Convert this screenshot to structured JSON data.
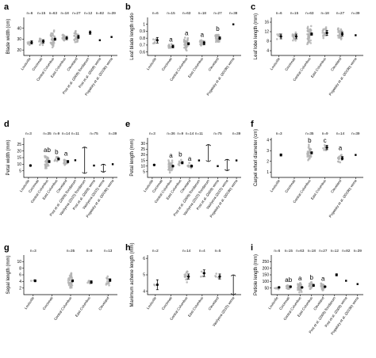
{
  "chart_data": [
    {
      "type": "scatter",
      "panel": "a",
      "ylabel": "Blade width (cm)",
      "ylim": [
        15,
        50
      ],
      "yticks": [
        20,
        30,
        40
      ],
      "categories": [
        "Louisville",
        "Cincinnati",
        "Central Columbus",
        "East Columbus",
        "Cleveland",
        "Post et al. (2009) floridanum",
        "Post et al. (2009) verna",
        "Pogatsky et al. (2019b) verna"
      ],
      "n": [
        "n=6",
        "n=15",
        "n=63",
        "n=18",
        "n=27",
        "n=12",
        "n=82",
        "n=39"
      ],
      "means": [
        27,
        28,
        30,
        31,
        32,
        36,
        29,
        32
      ],
      "err": [
        1.5,
        1.5,
        1,
        1.5,
        1.5,
        1.5,
        0,
        0
      ],
      "spread": [
        3,
        4,
        9,
        4,
        7,
        0,
        0,
        0
      ],
      "letters": []
    },
    {
      "type": "scatter",
      "panel": "b",
      "ylabel": "Leaf blade length ratio",
      "ylim": [
        0.55,
        1.1
      ],
      "yticks": [
        0.6,
        0.7,
        0.8,
        0.9,
        1.0
      ],
      "categories": [
        "Louisville",
        "Cincinnati",
        "Central Columbus",
        "East Columbus",
        "Cleveland",
        "Pogatsky et al. (2019b) verna"
      ],
      "n": [
        "n=6",
        "n=15",
        "n=63",
        "n=18",
        "n=27",
        "n=38"
      ],
      "means": [
        0.77,
        0.68,
        0.72,
        0.73,
        0.8,
        1.0
      ],
      "err": [
        0.04,
        0.02,
        0.015,
        0.025,
        0.02,
        0
      ],
      "spread": [
        0.06,
        0.04,
        0.1,
        0.06,
        0.08,
        0
      ],
      "letters": [
        "",
        "a",
        "a",
        "a",
        "b",
        ""
      ]
    },
    {
      "type": "scatter",
      "panel": "c",
      "ylabel": "Leaf lobe length (mm)",
      "ylim": [
        2,
        18
      ],
      "yticks": [
        4,
        8,
        12,
        16
      ],
      "categories": [
        "Louisville",
        "Cincinnati",
        "Central Columbus",
        "East Columbus",
        "Cleveland",
        "Pogatsky et al. (2019b) verna"
      ],
      "n": [
        "n=6",
        "n=15",
        "n=63",
        "n=18",
        "n=27",
        "n=39"
      ],
      "means": [
        10,
        10,
        11,
        11.5,
        11,
        10.5
      ],
      "err": [
        1,
        1,
        0.5,
        1,
        0.8,
        0
      ],
      "spread": [
        2,
        2.5,
        5,
        3,
        3,
        0
      ],
      "letters": []
    },
    {
      "type": "scatter",
      "panel": "d",
      "ylabel": "Petal width (mm)",
      "ylim": [
        0,
        30
      ],
      "yticks": [
        5,
        10,
        15,
        20,
        25
      ],
      "categories": [
        "Louisville",
        "Cincinnati",
        "Central Columbus",
        "East Columbus",
        "Cleveland",
        "Post et al. (2009) floridanum",
        "Vasilyeva (2015) floridanum",
        "Post et al. (2009) verna",
        "Vasilyeva (2015) verna",
        "Pogatsky et al. (2019b) verna"
      ],
      "n": [
        "n=3",
        "",
        "n=35",
        "n=9",
        "n=14",
        "n=11",
        "",
        "n=75",
        "",
        "n=39"
      ],
      "means": [
        9,
        null,
        12,
        14,
        12,
        13,
        null,
        9,
        null,
        10
      ],
      "err": [
        0.5,
        0,
        0.8,
        0.8,
        0.8,
        0,
        0,
        0,
        0,
        0
      ],
      "spread": [
        0,
        0,
        6,
        2,
        3,
        0,
        0,
        0,
        0,
        0
      ],
      "ranges": [
        null,
        null,
        null,
        null,
        null,
        null,
        [
          3,
          23
        ],
        null,
        [
          4,
          10
        ],
        null
      ],
      "letters": [
        "",
        "",
        "ab",
        "b",
        "a",
        "",
        "",
        "",
        "",
        ""
      ]
    },
    {
      "type": "scatter",
      "panel": "e",
      "ylabel": "Petal length (mm)",
      "ylim": [
        0,
        35
      ],
      "yticks": [
        5,
        10,
        15,
        20,
        25,
        30
      ],
      "categories": [
        "Louisville",
        "Cincinnati",
        "Central Columbus",
        "East Columbus",
        "Cleveland",
        "Post et al. (2009) floridanum",
        "Vasilyeva (2015) floridanum",
        "Post et al. (2009) verna",
        "Vasilyeva (2015) verna",
        "Pogatsky et al. (2019b) verna"
      ],
      "n": [
        "n=3",
        "",
        "n=36",
        "n=9",
        "n=14",
        "n=11",
        "",
        "n=75",
        "",
        "n=39"
      ],
      "means": [
        11,
        null,
        10,
        13,
        10,
        15,
        null,
        10,
        null,
        15
      ],
      "err": [
        0.5,
        0,
        0.7,
        1,
        0.8,
        0,
        0,
        0,
        0,
        0
      ],
      "spread": [
        0,
        0,
        6,
        4,
        3,
        0,
        0,
        0,
        0,
        0
      ],
      "ranges": [
        null,
        null,
        null,
        null,
        null,
        null,
        [
          14,
          29
        ],
        null,
        [
          6,
          16
        ],
        null
      ],
      "letters": [
        "",
        "",
        "a",
        "b",
        "a",
        "",
        "",
        "",
        "",
        ""
      ]
    },
    {
      "type": "scatter",
      "panel": "f",
      "ylabel": "Carpel whorl diameter (cm)",
      "ylim": [
        0.5,
        4.2
      ],
      "yticks": [
        1,
        2,
        3,
        4
      ],
      "categories": [
        "Louisville",
        "Cincinnati",
        "Central Columbus",
        "East Columbus",
        "Cleveland",
        "Pogatsky et al. (2019b) verna"
      ],
      "n": [
        "n=3",
        "",
        "n=35",
        "n=9",
        "n=14",
        "n=39"
      ],
      "means": [
        2.6,
        null,
        2.8,
        3.3,
        2.3,
        2.6
      ],
      "err": [
        0.1,
        0,
        0.1,
        0.2,
        0.15,
        0
      ],
      "spread": [
        0,
        0,
        0.9,
        0.4,
        0.6,
        0
      ],
      "letters": [
        "",
        "",
        "b",
        "c",
        "a",
        ""
      ]
    },
    {
      "type": "scatter",
      "panel": "g",
      "ylabel": "Sepal length (mm)",
      "ylim": [
        0,
        12
      ],
      "yticks": [
        2,
        4,
        6,
        8,
        10
      ],
      "categories": [
        "Louisville",
        "Cincinnati",
        "Central Columbus",
        "East Columbus",
        "Cleveland"
      ],
      "n": [
        "n=3",
        "",
        "n=35",
        "n=9",
        "n=13"
      ],
      "means": [
        4.2,
        null,
        4.2,
        3.8,
        4.4
      ],
      "err": [
        0.3,
        0,
        0.3,
        0.4,
        0.4
      ],
      "spread": [
        0.5,
        0,
        3,
        1,
        2
      ],
      "letters": []
    },
    {
      "type": "scatter",
      "panel": "h",
      "ylabel": "Maximum achene length (mm)",
      "ylim": [
        3.8,
        6.2
      ],
      "yticks": [
        4,
        5,
        6
      ],
      "categories": [
        "Louisville",
        "Cincinnati",
        "Central Columbus",
        "East Columbus",
        "Cleveland",
        "Vasilyeva (2015) verna"
      ],
      "n": [
        "n=2",
        "",
        "n=14",
        "n=4",
        "n=5",
        ""
      ],
      "means": [
        4.4,
        null,
        4.9,
        5.1,
        4.9,
        null
      ],
      "err": [
        0.3,
        0,
        0.15,
        0.2,
        0.15,
        0
      ],
      "spread": [
        0.1,
        0,
        0.6,
        0.3,
        0.3,
        0
      ],
      "ranges": [
        null,
        null,
        null,
        null,
        null,
        [
          3.8,
          5.0
        ]
      ],
      "letters": []
    },
    {
      "type": "scatter",
      "panel": "i",
      "ylabel": "Petiole length (mm)",
      "ylim": [
        0,
        300
      ],
      "yticks": [
        50,
        100,
        150,
        200,
        250
      ],
      "categories": [
        "Louisville",
        "Cincinnati",
        "Central Columbus",
        "East Columbus",
        "Cleveland",
        "Post et al. (2009) floridanum",
        "Post et al. (2009) verna",
        "Pogatsky et al. (2019b) verna"
      ],
      "n": [
        "n=6",
        "n=15",
        "n=63",
        "n=18",
        "n=27",
        "n=12",
        "n=82",
        "n=39"
      ],
      "means": [
        55,
        60,
        55,
        70,
        60,
        150,
        105,
        80
      ],
      "err": [
        5,
        6,
        4,
        8,
        5,
        8,
        0,
        0
      ],
      "spread": [
        20,
        20,
        40,
        30,
        30,
        0,
        0,
        0
      ],
      "letters": [
        "",
        "ab",
        "a",
        "b",
        "a",
        "",
        "",
        ""
      ]
    }
  ]
}
